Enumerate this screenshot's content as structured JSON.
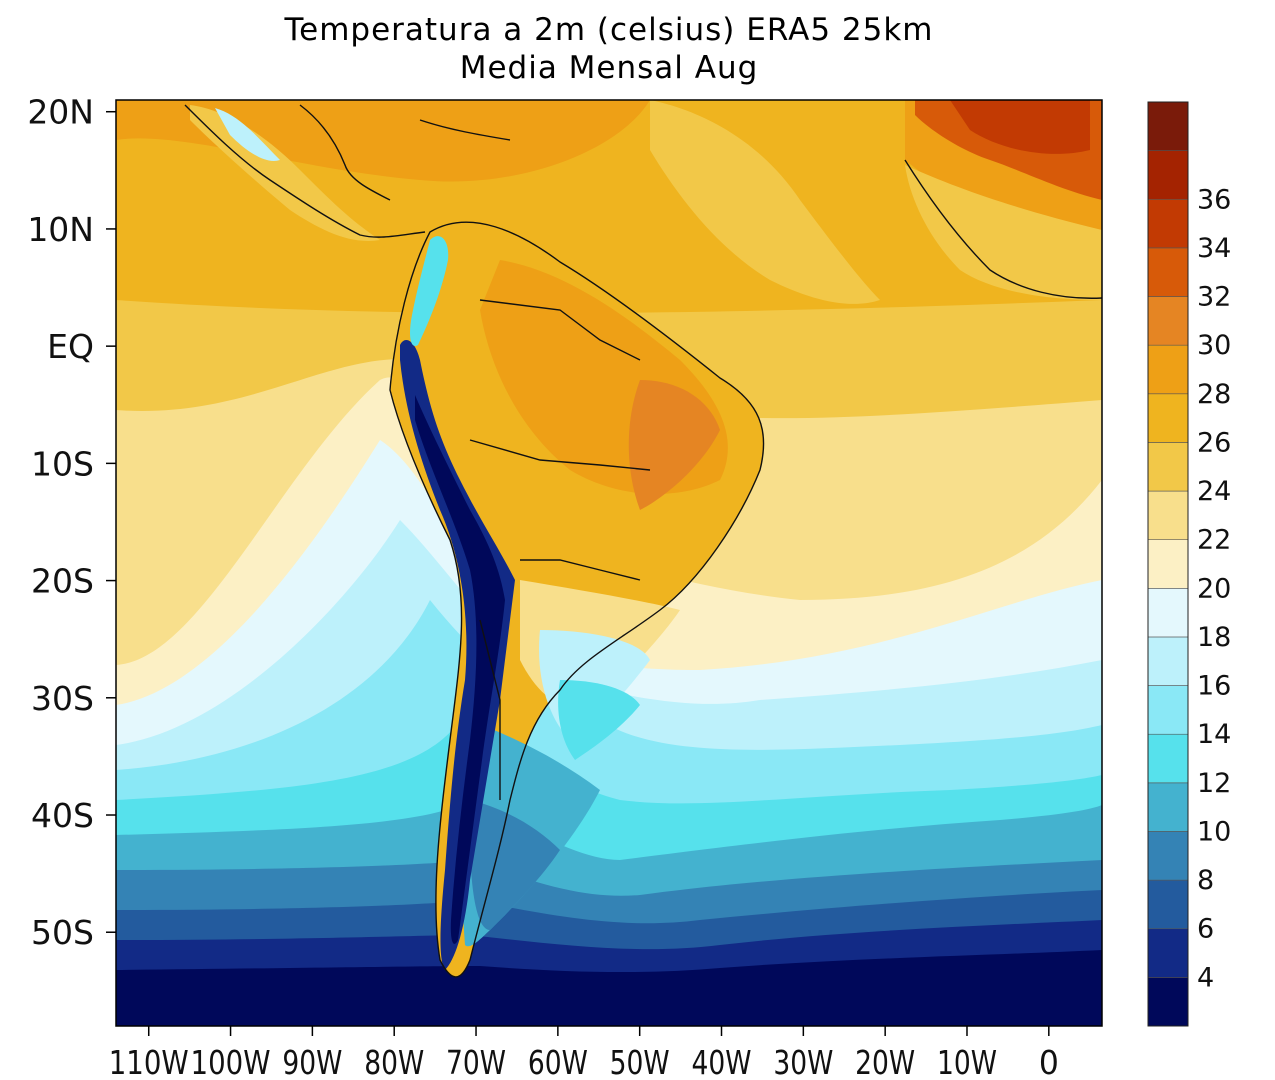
{
  "title": {
    "line1": "Temperatura a 2m (celsius) ERA5  25km",
    "line2": "Media Mensal Aug"
  },
  "lat_ticks": [
    "20N",
    "10N",
    "EQ",
    "10S",
    "20S",
    "30S",
    "40S",
    "50S"
  ],
  "lat_values": [
    20,
    10,
    0,
    -10,
    -20,
    -30,
    -40,
    -50
  ],
  "lon_ticks": [
    "110W",
    "100W",
    "90W",
    "80W",
    "70W",
    "60W",
    "50W",
    "40W",
    "30W",
    "20W",
    "10W",
    "0"
  ],
  "lon_values": [
    -110,
    -100,
    -90,
    -80,
    -70,
    -60,
    -50,
    -40,
    -30,
    -20,
    -10,
    0
  ],
  "extent": {
    "lon_min": -114,
    "lon_max": 6.5,
    "lat_min": -58,
    "lat_max": 21
  },
  "colorbar": {
    "labels": [
      "4",
      "6",
      "8",
      "10",
      "12",
      "14",
      "16",
      "18",
      "20",
      "22",
      "24",
      "26",
      "28",
      "30",
      "32",
      "34",
      "36"
    ],
    "colors": [
      "#00085a",
      "#122a86",
      "#235b9e",
      "#3483b5",
      "#44b2cf",
      "#56e1ec",
      "#8ae8f6",
      "#bdf1fb",
      "#e4f8fd",
      "#fcf0c5",
      "#f8df8c",
      "#f2c848",
      "#efb41f",
      "#eea016",
      "#e58523",
      "#d75a09",
      "#c23a03",
      "#a42301",
      "#7a1b0a"
    ]
  }
}
